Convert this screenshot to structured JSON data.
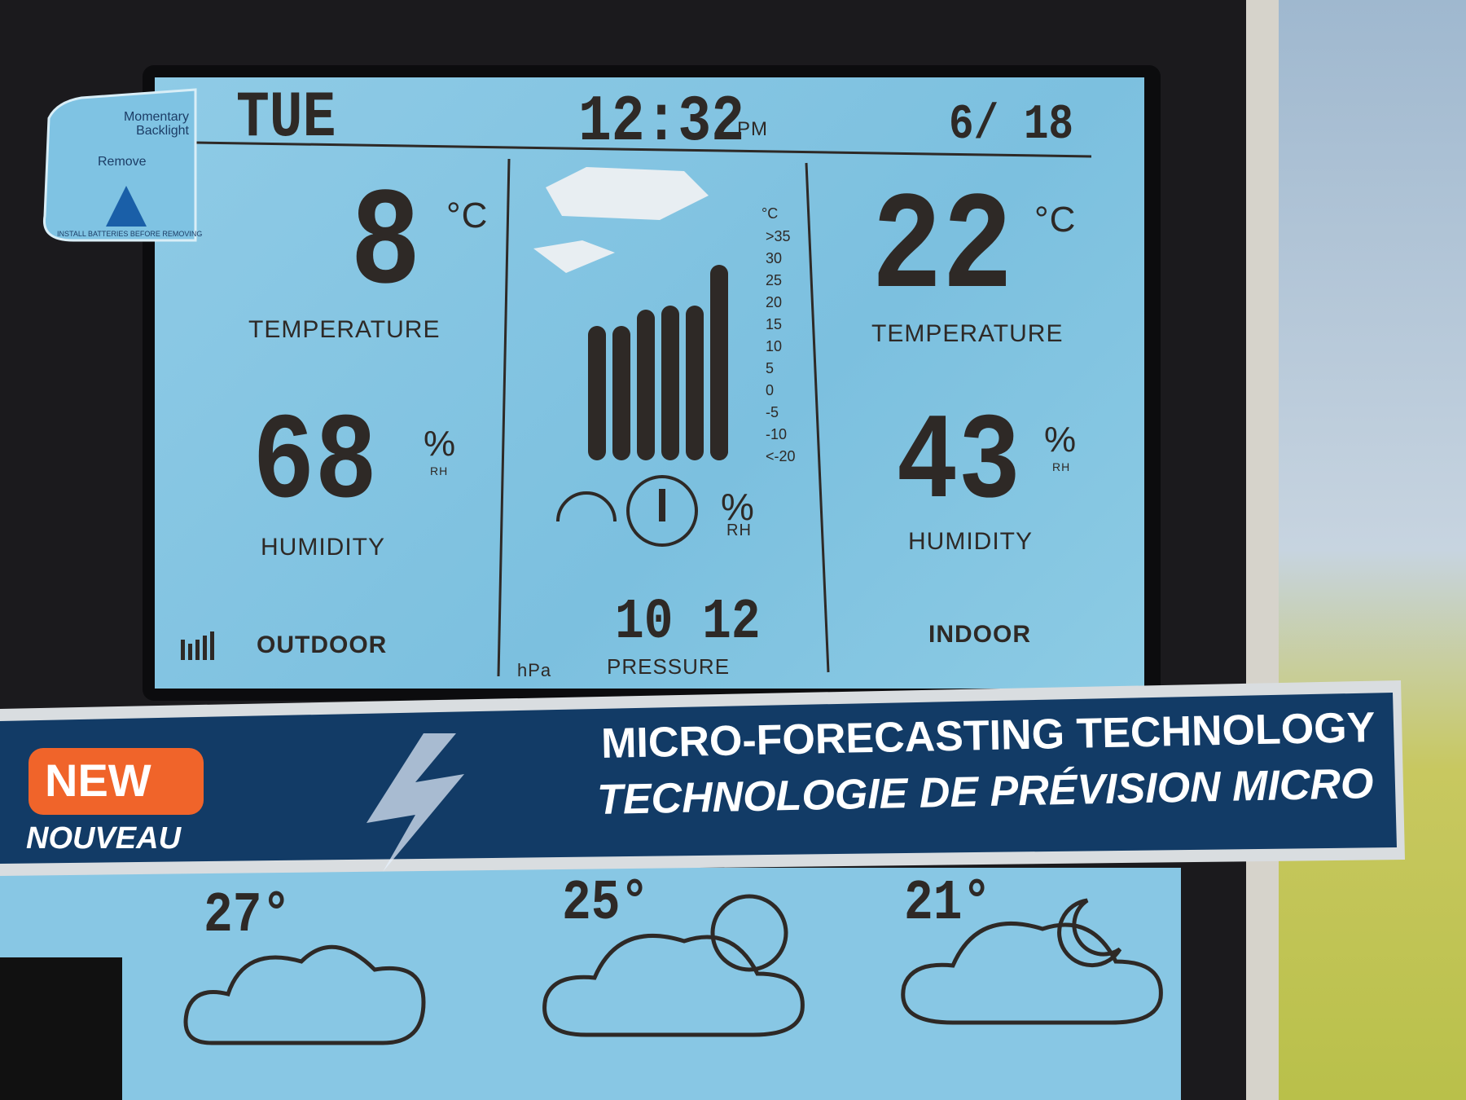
{
  "header": {
    "day": "TUE",
    "time": "12:32",
    "ampm": "PM",
    "date": "6/ 18"
  },
  "sticker": {
    "line1": "Momentary Backlight",
    "line2": "Remove",
    "line3": "INSTALL BATTERIES BEFORE REMOVING"
  },
  "outdoor": {
    "temperature": "8",
    "temperature_unit": "°C",
    "temperature_label": "TEMPERATURE",
    "humidity": "68",
    "humidity_unit": "%",
    "humidity_sub": "RH",
    "humidity_label": "HUMIDITY",
    "location_label": "OUTDOOR"
  },
  "center": {
    "scale_unit": "°C",
    "scale_labels": [
      ">35",
      "30",
      "25",
      "20",
      "15",
      "10",
      "5",
      "0",
      "-5",
      "-10",
      "<-20"
    ],
    "percent": "%",
    "rh": "RH",
    "pressure": "10 12",
    "pressure_unit": "hPa",
    "pressure_label": "PRESSURE"
  },
  "indoor": {
    "temperature": "22",
    "temperature_unit": "°C",
    "temperature_label": "TEMPERATURE",
    "humidity": "43",
    "humidity_unit": "%",
    "humidity_sub": "RH",
    "humidity_label": "HUMIDITY",
    "location_label": "INDOOR"
  },
  "banner": {
    "badge": "NEW",
    "badge_sub": "NOUVEAU",
    "line1": "MICRO-FORECASTING TECHNOLOGY",
    "line2": "TECHNOLOGIE DE PRÉVISION MICRO"
  },
  "forecast": [
    {
      "temperature": "27°"
    },
    {
      "temperature": "25°"
    },
    {
      "temperature": "21°"
    }
  ]
}
